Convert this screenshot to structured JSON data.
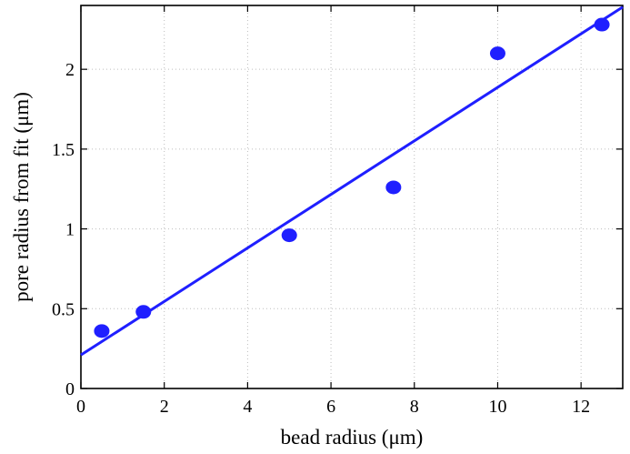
{
  "chart_data": {
    "type": "scatter",
    "xlabel": "bead radius (μm)",
    "ylabel": "pore radius from fit (μm)",
    "xlim": [
      0,
      13
    ],
    "ylim": [
      0,
      2.4
    ],
    "xticks": [
      0,
      2,
      4,
      6,
      8,
      10,
      12
    ],
    "yticks": [
      0,
      0.5,
      1,
      1.5,
      2
    ],
    "xtick_labels": [
      "0",
      "2",
      "4",
      "6",
      "8",
      "10",
      "12"
    ],
    "ytick_labels": [
      "0",
      "0.5",
      "1",
      "1.5",
      "2"
    ],
    "grid": true,
    "series": [
      {
        "kind": "scatter",
        "color": "#1f1fff",
        "points": [
          {
            "x": 0.5,
            "y": 0.36
          },
          {
            "x": 1.5,
            "y": 0.48
          },
          {
            "x": 5,
            "y": 0.96
          },
          {
            "x": 7.5,
            "y": 1.26
          },
          {
            "x": 10,
            "y": 2.1
          },
          {
            "x": 12.5,
            "y": 2.28
          }
        ]
      },
      {
        "kind": "line",
        "color": "#1f1fff",
        "points": [
          {
            "x": 0,
            "y": 0.21
          },
          {
            "x": 13,
            "y": 2.39
          }
        ]
      }
    ]
  }
}
